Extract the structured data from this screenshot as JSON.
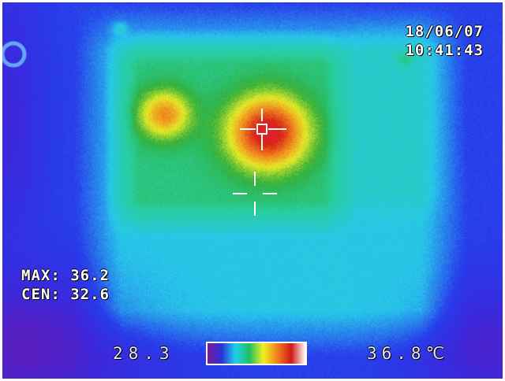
{
  "image": {
    "kind": "thermal infrared camera frame",
    "palette_colors": [
      "#7a1a9a",
      "#2b31d6",
      "#1fd0e8",
      "#20c060",
      "#f0f020",
      "#f08020",
      "#d01818",
      "#ffffff"
    ]
  },
  "osd": {
    "date": "18/06/07",
    "time": "10:41:43",
    "max_label": "MAX:",
    "max_value": "36.2",
    "cen_label": "CEN:",
    "cen_value": "32.6",
    "scale_min": "28.3",
    "scale_max": "36.8",
    "scale_unit": "℃"
  }
}
